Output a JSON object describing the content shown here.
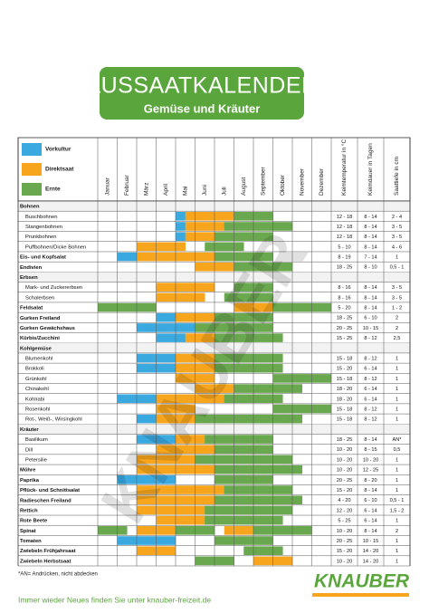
{
  "header": {
    "title": "AUSSAATKALENDER",
    "subtitle": "Gemüse und Kräuter"
  },
  "legend": [
    {
      "label": "Vorkultur",
      "color": "#3aa9e0"
    },
    {
      "label": "Direktsaat",
      "color": "#f7a51c"
    },
    {
      "label": "Ernte",
      "color": "#6aa84f"
    }
  ],
  "table": {
    "months": [
      "Januar",
      "Februar",
      "März",
      "April",
      "Mai",
      "Juni",
      "Juli",
      "August",
      "September",
      "Oktober",
      "November",
      "Dezember"
    ],
    "columns": [
      "Keimtemperatur in °C",
      "Keimdauer in Tagen",
      "Saattiefe in cm"
    ],
    "rows": [
      {
        "name": "Bohnen",
        "group": true
      },
      {
        "name": "Buschbohnen",
        "sub": true,
        "cells": "--------0111112222------",
        "temp": "12 - 18",
        "days": "8 - 14",
        "depth": "2 - 4"
      },
      {
        "name": "Stangenbohnen",
        "sub": true,
        "cells": "--------011112222222----",
        "temp": "12 - 18",
        "days": "8 - 14",
        "depth": "3 - 5"
      },
      {
        "name": "Prunkbohnen",
        "sub": true,
        "cells": "--------0111222222------",
        "temp": "12 - 18",
        "days": "8 - 14",
        "depth": "3 - 5"
      },
      {
        "name": "Puffbohnen/Dicke Bohnen",
        "sub": true,
        "cells": "----11111--2222---------",
        "temp": "5 - 10",
        "days": "8 - 14",
        "depth": "4 - 6"
      },
      {
        "name": "Eis- und Kopfsalat",
        "cells": "--0011111111222222------",
        "temp": "8 - 19",
        "days": "7 - 14",
        "depth": "1"
      },
      {
        "name": "Endivien",
        "cells": "----------1111222222----",
        "temp": "18 - 25",
        "days": "8 - 10",
        "depth": "0,5 - 1"
      },
      {
        "name": "Erbsen",
        "group": true
      },
      {
        "name": "Mark- und Zuckererbsen",
        "sub": true,
        "cells": "------111111--2222------",
        "temp": "8 - 16",
        "days": "8 - 14",
        "depth": "3 - 5"
      },
      {
        "name": "Schalerbsen",
        "sub": true,
        "cells": "------11111--22222------",
        "temp": "8 - 16",
        "days": "8 - 14",
        "depth": "3 - 5"
      },
      {
        "name": "Feldsalat",
        "cells": "222222--------1111222222",
        "temp": "5 - 20",
        "days": "8 - 14",
        "depth": "1 - 2"
      },
      {
        "name": "Gurken Freiland",
        "cells": "------001111222222------",
        "temp": "18 - 25",
        "days": "6 - 10",
        "depth": "2"
      },
      {
        "name": "Gurken Gewächshaus",
        "cells": "----00000022222222------",
        "temp": "20 - 25",
        "days": "10 - 15",
        "depth": "2"
      },
      {
        "name": "Kürbis/Zucchini",
        "cells": "------0001112222222-----",
        "temp": "15 - 25",
        "days": "8 - 12",
        "depth": "2,5"
      },
      {
        "name": "Kohlgemüse",
        "group": true
      },
      {
        "name": "Blumenkohl",
        "sub": true,
        "cells": "----000011112222222-----",
        "temp": "15 - 18",
        "days": "8 - 12",
        "depth": "1"
      },
      {
        "name": "Brokkoli",
        "sub": true,
        "cells": "----000011112222222-----",
        "temp": "15 - 20",
        "days": "6 - 14",
        "depth": "1"
      },
      {
        "name": "Grünkohl",
        "sub": true,
        "cells": "--------1111------222222",
        "temp": "15 - 18",
        "days": "8 - 12",
        "depth": "1"
      },
      {
        "name": "Chinakohl",
        "sub": true,
        "cells": "----------11112222222---",
        "temp": "18 - 20",
        "days": "6 - 14",
        "depth": "1"
      },
      {
        "name": "Kohlrabi",
        "sub": true,
        "cells": "--00001111111222222-----",
        "temp": "18 - 20",
        "days": "6 - 14",
        "depth": "1"
      },
      {
        "name": "Rosenkohl",
        "sub": true,
        "cells": "------1111--------222222",
        "temp": "15 - 18",
        "days": "8 - 12",
        "depth": "1"
      },
      {
        "name": "Rot-, Weiß-, Wirsingkohl",
        "sub": true,
        "cells": "----00111122222222222---",
        "temp": "15 - 18",
        "days": "8 - 12",
        "depth": "1"
      },
      {
        "name": "Kräuter",
        "group": true
      },
      {
        "name": "Basilikum",
        "sub": true,
        "cells": "----00001112222222------",
        "temp": "18 - 25",
        "days": "8 - 14",
        "depth": "AN*"
      },
      {
        "name": "Dill",
        "sub": true,
        "cells": "------111111222222------",
        "temp": "10 - 20",
        "days": "8 - 15",
        "depth": "0,5"
      },
      {
        "name": "Petersilie",
        "sub": true,
        "cells": "----1111112222222222----",
        "temp": "10 - 20",
        "days": "10 - 20",
        "depth": "1"
      },
      {
        "name": "Möhre",
        "cells": "----11111111222222222---",
        "temp": "10 - 20",
        "days": "12 - 25",
        "depth": "1"
      },
      {
        "name": "Paprika",
        "cells": "--000000----222222------",
        "temp": "20 - 25",
        "days": "8 - 20",
        "depth": "1"
      },
      {
        "name": "Pflück- und Schnittsalat",
        "cells": "----1111111112222222----",
        "temp": "15 - 20",
        "days": "8 - 14",
        "depth": "1"
      },
      {
        "name": "Radieschen Freiland",
        "cells": "----11111111222222222---",
        "temp": "4 - 20",
        "days": "6 - 10",
        "depth": "0,5 - 1"
      },
      {
        "name": "Rettich",
        "cells": "----1111111222222222----",
        "temp": "12 - 20",
        "days": "6 - 14",
        "depth": "1,5 - 2"
      },
      {
        "name": "Rote Beete",
        "cells": "------1111122222222-----",
        "temp": "5 - 25",
        "days": "6 - 14",
        "depth": "1"
      },
      {
        "name": "Spinat",
        "cells": "222-11112222-111222222--",
        "temp": "10 - 20",
        "days": "8 - 14",
        "depth": "2"
      },
      {
        "name": "Tomaten",
        "cells": "--000000----222222------",
        "temp": "20 - 25",
        "days": "10 - 15",
        "depth": "1"
      },
      {
        "name": "Zwiebeln Frühjahrsaat",
        "cells": "----1111-------2222-----",
        "temp": "15 - 20",
        "days": "14 - 20",
        "depth": "1"
      },
      {
        "name": "Zwiebeln Herbstsaat",
        "cells": "----------2222--1111----",
        "temp": "10 - 20",
        "days": "14 - 20",
        "depth": "1"
      }
    ]
  },
  "footnote": "*AN= Andrücken, nicht abdecken",
  "footer": "Immer wieder Neues finden Sie unter knauber-freizeit.de",
  "logo": "KNAUBER",
  "watermark": "KNAUBER"
}
